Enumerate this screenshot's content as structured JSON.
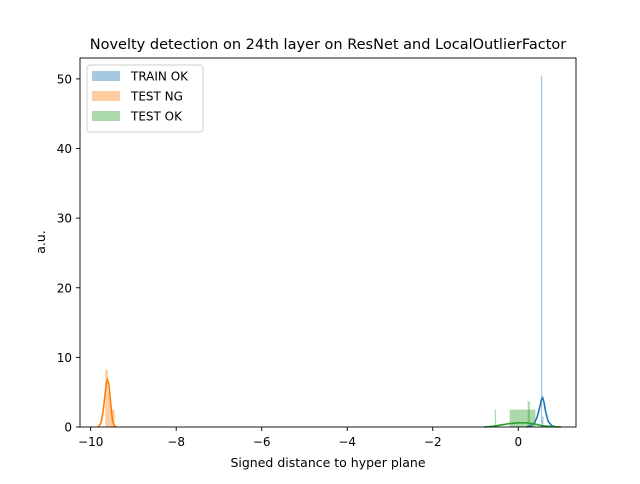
{
  "chart_data": {
    "type": "histogram",
    "title": "Novelty detection on 24th layer on ResNet and LocalOutlierFactor",
    "xlabel": "Signed distance to hyper plane",
    "ylabel": "a.u.",
    "xlim": [
      -10.25,
      1.35
    ],
    "ylim": [
      0,
      53
    ],
    "xticks": [
      -10,
      -8,
      -6,
      -4,
      -2,
      0
    ],
    "yticks": [
      0,
      10,
      20,
      30,
      40,
      50
    ],
    "grid": false,
    "legend_position": "top-left",
    "series": [
      {
        "name": "TRAIN OK",
        "color": "#1f77b4",
        "histogram": [
          {
            "x0": 0.53,
            "x1": 0.56,
            "height": 50.5
          },
          {
            "x0": 0.56,
            "x1": 0.59,
            "height": 1.5
          }
        ],
        "kde": {
          "x": [
            0.2,
            0.3,
            0.38,
            0.44,
            0.5,
            0.54,
            0.57,
            0.6,
            0.64,
            0.7,
            0.78,
            0.88
          ],
          "y": [
            0.0,
            0.2,
            0.6,
            1.4,
            2.8,
            3.9,
            4.2,
            3.6,
            2.2,
            0.8,
            0.2,
            0.0
          ]
        }
      },
      {
        "name": "TEST NG",
        "color": "#ff7f0e",
        "histogram": [
          {
            "x0": -9.66,
            "x1": -9.6,
            "height": 8.2
          },
          {
            "x0": -9.6,
            "x1": -9.54,
            "height": 5.0
          },
          {
            "x0": -9.54,
            "x1": -9.44,
            "height": 2.5
          }
        ],
        "kde": {
          "x": [
            -9.82,
            -9.76,
            -9.72,
            -9.68,
            -9.64,
            -9.61,
            -9.58,
            -9.55,
            -9.52,
            -9.49,
            -9.45,
            -9.4
          ],
          "y": [
            0.0,
            0.6,
            1.8,
            3.8,
            6.0,
            6.8,
            6.3,
            4.6,
            2.6,
            1.0,
            0.2,
            0.0
          ]
        }
      },
      {
        "name": "TEST OK",
        "color": "#2ca02c",
        "histogram": [
          {
            "x0": -0.55,
            "x1": -0.52,
            "height": 2.5
          },
          {
            "x0": -0.2,
            "x1": 0.4,
            "height": 2.5
          },
          {
            "x0": 0.22,
            "x1": 0.27,
            "height": 3.7
          }
        ],
        "kde": {
          "x": [
            -0.8,
            -0.6,
            -0.4,
            -0.2,
            0.0,
            0.2,
            0.4,
            0.55,
            0.7,
            0.85,
            1.0
          ],
          "y": [
            0.0,
            0.1,
            0.3,
            0.5,
            0.6,
            0.6,
            0.4,
            0.2,
            0.1,
            0.05,
            0.0
          ]
        }
      }
    ]
  }
}
